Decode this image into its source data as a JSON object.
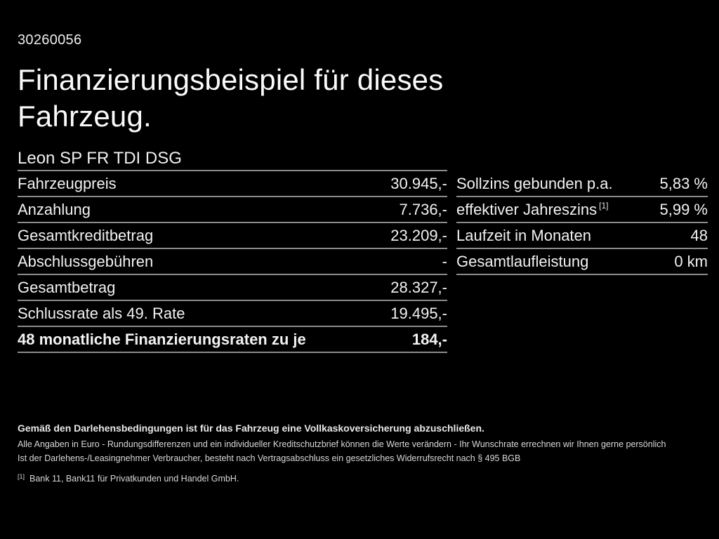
{
  "page": {
    "doc_number": "30260056",
    "title": "Finanzierungsbeispiel für dieses\nFahrzeug.",
    "vehicle_model": "Leon SP FR TDI DSG"
  },
  "left_table": {
    "rows": [
      {
        "label": "Fahrzeugpreis",
        "value": "30.945,-"
      },
      {
        "label": "Anzahlung",
        "value": "7.736,-"
      },
      {
        "label": "Gesamtkreditbetrag",
        "value": "23.209,-"
      },
      {
        "label": "Abschlussgebühren",
        "value": "-"
      },
      {
        "label": "Gesamtbetrag",
        "value": "28.327,-"
      },
      {
        "label": "Schlussrate als 49. Rate",
        "value": "19.495,-"
      },
      {
        "label": "48 monatliche Finanzierungsraten zu je",
        "value": "184,-"
      }
    ]
  },
  "right_table": {
    "rows": [
      {
        "label": "Sollzins gebunden p.a.",
        "value": "5,83 %"
      },
      {
        "label": "effektiver Jahreszins",
        "label_sup": "[1]",
        "value": "5,99 %"
      },
      {
        "label": "Laufzeit in Monaten",
        "value": "48"
      },
      {
        "label": "Gesamtlaufleistung",
        "value": "0 km"
      }
    ]
  },
  "footer": {
    "insurance_note": "Gemäß den Darlehensbedingungen ist für das Fahrzeug eine Vollkaskoversicherung abzuschließen.",
    "disclaimer_line1": "Alle Angaben in Euro - Rundungsdifferenzen und ein individueller Kreditschutzbrief können die Werte verändern - Ihr Wunschrate errechnen wir Ihnen gerne persönlich",
    "disclaimer_line2": "Ist der Darlehens-/Leasingnehmer Verbraucher, besteht nach Vertragsabschluss ein gesetzliches Widerrufsrecht nach § 495 BGB",
    "footnote_marker": "[1]",
    "footnote_text": "Bank 11, Bank11 für Privatkunden und Handel GmbH."
  },
  "colors": {
    "background": "#000000",
    "text": "#f2f2f2",
    "divider": "#8c8c8c"
  }
}
